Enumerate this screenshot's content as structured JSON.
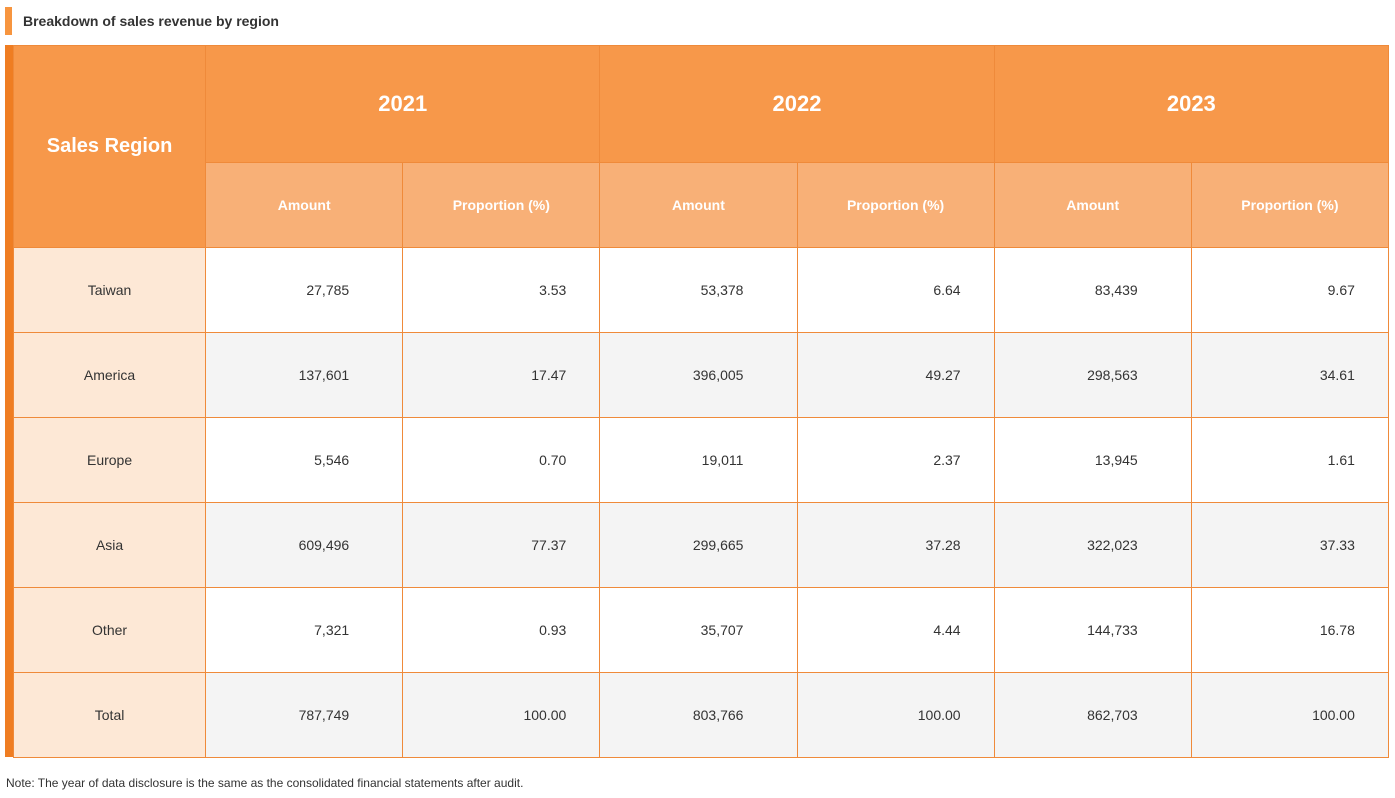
{
  "title": "Breakdown of sales revenue by region",
  "table": {
    "region_header": "Sales Region",
    "years": [
      "2021",
      "2022",
      "2023"
    ],
    "sub_headers": [
      "Amount",
      "Proportion (%)",
      "Amount",
      "Proportion (%)",
      "Amount",
      "Proportion (%)"
    ],
    "rows": [
      {
        "region": "Taiwan",
        "values": [
          "27,785",
          "3.53",
          "53,378",
          "6.64",
          "83,439",
          "9.67"
        ]
      },
      {
        "region": "America",
        "values": [
          "137,601",
          "17.47",
          "396,005",
          "49.27",
          "298,563",
          "34.61"
        ]
      },
      {
        "region": "Europe",
        "values": [
          "5,546",
          "0.70",
          "19,011",
          "2.37",
          "13,945",
          "1.61"
        ]
      },
      {
        "region": "Asia",
        "values": [
          "609,496",
          "77.37",
          "299,665",
          "37.28",
          "322,023",
          "37.33"
        ]
      },
      {
        "region": "Other",
        "values": [
          "7,321",
          "0.93",
          "35,707",
          "4.44",
          "144,733",
          "16.78"
        ]
      },
      {
        "region": "Total",
        "values": [
          "787,749",
          "100.00",
          "803,766",
          "100.00",
          "862,703",
          "100.00"
        ]
      }
    ]
  },
  "note": "Note: The year of data disclosure is the same as the consolidated financial statements after audit.",
  "colors": {
    "accent": "#f7953f",
    "header": "#f7984a",
    "subheader": "#f8b077",
    "region_column": "#fde8d6",
    "alt_row": "#f4f4f4"
  }
}
